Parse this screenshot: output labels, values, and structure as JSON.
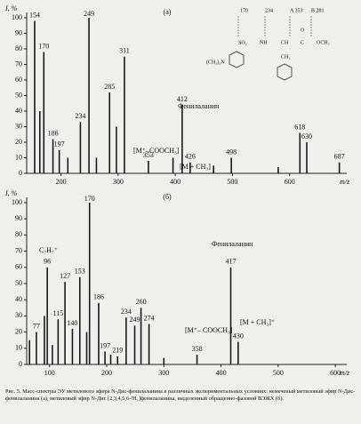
{
  "chart_data": [
    {
      "type": "bar",
      "panel": "(а)",
      "y_label": "I, %",
      "x_label": "m/z",
      "xlim": [
        140,
        700
      ],
      "xticks": [
        200,
        300,
        400,
        500,
        600
      ],
      "ylim": [
        0,
        100
      ],
      "yticks": [
        0,
        10,
        20,
        30,
        40,
        50,
        60,
        70,
        80,
        90,
        100
      ],
      "color": "#1a1a1a",
      "x": [
        154,
        163,
        170,
        186,
        197,
        212,
        234,
        249,
        262,
        285,
        297,
        311,
        353,
        396,
        412,
        426,
        467,
        498,
        580,
        618,
        630,
        687
      ],
      "values": [
        98,
        40,
        78,
        22,
        15,
        10,
        33,
        100,
        10,
        52,
        30,
        75,
        8,
        10,
        44,
        7,
        5,
        10,
        4,
        26,
        20,
        7
      ],
      "peak_labels": [
        154,
        null,
        170,
        186,
        197,
        null,
        234,
        249,
        null,
        285,
        null,
        311,
        353,
        null,
        412,
        426,
        null,
        498,
        null,
        618,
        630,
        687
      ],
      "annotations": [
        "Фенилаланин",
        "[M⁺–COOCH₃]",
        "[M + CH₃]"
      ],
      "structure": [
        "(CH₃)₂N",
        "SO₂",
        "NH",
        "CH",
        "C",
        "OCH₃",
        "CH₂",
        "O",
        "170",
        "234",
        "A 353",
        "B 281"
      ]
    },
    {
      "type": "bar",
      "panel": "(б)",
      "y_label": "I, %",
      "x_label": "m/z",
      "xlim": [
        60,
        620
      ],
      "xticks": [
        100,
        200,
        300,
        400,
        500,
        600
      ],
      "ylim": [
        0,
        100
      ],
      "yticks": [
        0,
        10,
        20,
        30,
        40,
        50,
        60,
        70,
        80,
        90,
        100
      ],
      "color": "#1a1a1a",
      "x": [
        65,
        77,
        91,
        96,
        105,
        115,
        127,
        140,
        153,
        165,
        170,
        186,
        197,
        207,
        219,
        234,
        249,
        260,
        274,
        300,
        358,
        417,
        430
      ],
      "values": [
        15,
        20,
        30,
        60,
        12,
        28,
        51,
        22,
        54,
        20,
        100,
        38,
        8,
        6,
        5,
        29,
        24,
        35,
        25,
        4,
        6,
        60,
        14
      ],
      "peak_labels": [
        null,
        77,
        null,
        96,
        null,
        115,
        127,
        140,
        153,
        null,
        170,
        186,
        197,
        null,
        219,
        234,
        249,
        260,
        274,
        null,
        358,
        417,
        430
      ],
      "annotations": [
        "C₇H₇⁺",
        "Фенилаланин",
        "[M⁺– COOCH₃]",
        "[M + CH₃]⁺"
      ]
    }
  ],
  "caption": "Рис. 5. Масс-спектры ЭУ метилового эфира N-Дис-фенилаланина в различных экспериментальных условиях: немеченый метиловый эфир N-Дис-фенилаланина (а), метиловый эфир N-Дис [2,3,4,5,6-²H₅]фенилаланина, выделенный обращенно-фазовой ВЭЖХ (б)."
}
